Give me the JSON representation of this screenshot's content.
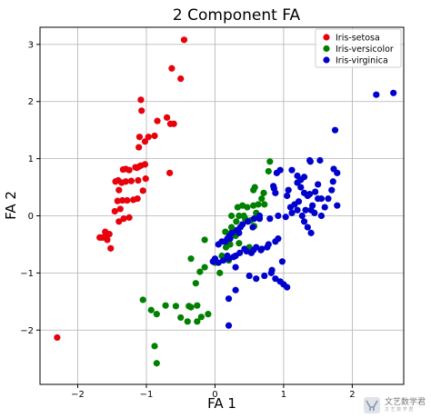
{
  "chart_data": {
    "type": "scatter",
    "title": "2 Component FA",
    "xlabel": "FA 1",
    "ylabel": "FA 2",
    "xlim": [
      -2.55,
      2.75
    ],
    "ylim": [
      -2.95,
      3.3
    ],
    "xticks": [
      -2,
      -1,
      0,
      1,
      2
    ],
    "yticks": [
      -2,
      -1,
      0,
      1,
      2,
      3
    ],
    "xtick_labels": [
      "−2",
      "−1",
      "0",
      "1",
      "2"
    ],
    "ytick_labels": [
      "−2",
      "−1",
      "0",
      "1",
      "2",
      "3"
    ],
    "grid": true,
    "legend_position": "top-right",
    "series": [
      {
        "name": "Iris-setosa",
        "color": "#e8000b",
        "x": [
          -0.45,
          -0.63,
          -0.5,
          -1.08,
          -1.07,
          -0.6,
          -0.65,
          -0.7,
          -0.84,
          -0.88,
          -0.97,
          -1.02,
          -1.1,
          -1.11,
          -0.66,
          -1.02,
          -1.08,
          -1.11,
          -1.14,
          -1.16,
          -1.25,
          -1.3,
          -1.34,
          -1.41,
          -1.45,
          -1.01,
          -1.12,
          -1.22,
          -1.3,
          -1.36,
          -1.4,
          -1.05,
          -1.13,
          -1.19,
          -1.28,
          -1.35,
          -1.42,
          -1.38,
          -1.46,
          -1.25,
          -1.33,
          -1.4,
          -1.54,
          -1.58,
          -1.6,
          -1.64,
          -1.68,
          -1.57,
          -1.52,
          -2.3
        ],
        "y": [
          3.08,
          2.58,
          2.4,
          2.03,
          1.84,
          1.61,
          1.61,
          1.72,
          1.66,
          1.4,
          1.38,
          1.3,
          1.38,
          1.2,
          0.75,
          0.9,
          0.88,
          0.86,
          0.84,
          0.85,
          0.8,
          0.82,
          0.81,
          0.62,
          0.6,
          0.65,
          0.62,
          0.61,
          0.6,
          0.58,
          0.45,
          0.44,
          0.3,
          0.28,
          0.27,
          0.27,
          0.26,
          0.12,
          0.08,
          -0.03,
          -0.05,
          -0.1,
          -0.32,
          -0.35,
          -0.28,
          -0.38,
          -0.38,
          -0.42,
          -0.57,
          -2.13
        ]
      },
      {
        "name": "Iris-versicolor",
        "color": "#008000",
        "x": [
          0.8,
          0.78,
          0.56,
          0.58,
          0.71,
          0.68,
          0.63,
          0.56,
          0.4,
          0.35,
          0.47,
          0.33,
          0.42,
          0.24,
          0.31,
          0.44,
          0.52,
          0.6,
          0.72,
          0.57,
          0.3,
          0.24,
          0.23,
          0.15,
          0.22,
          0.35,
          0.5,
          0.16,
          0.1,
          0.2,
          0.0,
          -0.15,
          -0.35,
          -0.15,
          0.07,
          -0.22,
          -0.28,
          -0.26,
          -0.38,
          -0.57,
          -0.72,
          -0.1,
          -0.2,
          -0.26,
          -0.4,
          -0.5,
          -0.35,
          -1.05,
          -0.85,
          -0.93,
          -0.88,
          -0.85
        ],
        "y": [
          0.95,
          0.78,
          0.45,
          0.5,
          0.4,
          0.3,
          0.2,
          0.18,
          0.18,
          0.0,
          0.15,
          0.15,
          0.0,
          0.0,
          -0.1,
          -0.05,
          -0.08,
          0.05,
          0.2,
          -0.18,
          -0.35,
          -0.2,
          -0.3,
          -0.28,
          -0.5,
          -0.48,
          -0.55,
          -0.55,
          -0.7,
          -0.78,
          -0.82,
          -0.42,
          -0.75,
          -0.9,
          -1.0,
          -0.98,
          -1.18,
          -1.57,
          -1.58,
          -1.58,
          -1.57,
          -1.72,
          -1.77,
          -1.85,
          -1.85,
          -1.78,
          -1.6,
          -1.47,
          -1.72,
          -1.65,
          -2.28,
          -2.58
        ]
      },
      {
        "name": "Iris-virginica",
        "color": "#0000cd",
        "x": [
          2.6,
          2.35,
          1.75,
          1.38,
          1.39,
          1.53,
          1.73,
          1.12,
          0.95,
          0.9,
          0.85,
          1.3,
          1.25,
          1.2,
          1.07,
          1.05,
          1.78,
          1.5,
          1.38,
          1.5,
          1.22,
          1.16,
          0.86,
          0.88,
          1.55,
          1.46,
          1.42,
          1.32,
          1.12,
          1.03,
          0.92,
          0.8,
          0.65,
          0.57,
          0.48,
          0.4,
          0.37,
          0.32,
          0.25,
          0.21,
          0.18,
          0.15,
          0.92,
          0.88,
          0.78,
          0.76,
          0.68,
          0.67,
          0.6,
          0.56,
          0.53,
          0.46,
          0.43,
          0.36,
          0.3,
          0.27,
          0.2,
          0.18,
          0.12,
          0.05,
          0.0,
          -0.03,
          0.3,
          0.5,
          0.6,
          0.72,
          0.82,
          0.83,
          0.88,
          0.95,
          1.0,
          1.05,
          1.2,
          1.25,
          1.3,
          1.35,
          1.4,
          1.45,
          0.65,
          0.55,
          0.35,
          0.22,
          0.1,
          0.05,
          0.3,
          0.2,
          1.1,
          1.2,
          1.27,
          1.3,
          1.35,
          1.4,
          1.55,
          1.6,
          1.65,
          1.7,
          1.72,
          1.78,
          0.98,
          0.2
        ],
        "y": [
          2.15,
          2.12,
          1.5,
          0.97,
          0.95,
          0.97,
          0.82,
          0.8,
          0.8,
          0.75,
          0.52,
          0.68,
          0.63,
          0.58,
          0.45,
          0.35,
          0.18,
          0.55,
          0.38,
          0.3,
          0.25,
          0.2,
          0.48,
          0.4,
          0.3,
          0.42,
          0.18,
          0.1,
          0.05,
          -0.02,
          0.0,
          -0.05,
          0.0,
          -0.05,
          -0.1,
          -0.15,
          -0.2,
          -0.25,
          -0.3,
          -0.35,
          -0.4,
          -0.45,
          -0.4,
          -0.45,
          -0.5,
          -0.55,
          -0.58,
          -0.6,
          -0.55,
          -0.6,
          -0.65,
          -0.62,
          -0.58,
          -0.65,
          -0.7,
          -0.72,
          -0.75,
          -0.7,
          -0.78,
          -0.82,
          -0.75,
          -0.8,
          -0.9,
          -1.05,
          -1.1,
          -1.05,
          -1.0,
          -0.95,
          -1.1,
          -1.15,
          -1.2,
          -1.25,
          0.7,
          0.5,
          0.4,
          0.35,
          0.1,
          0.05,
          -0.05,
          -0.2,
          -0.3,
          -0.4,
          -0.45,
          -0.5,
          -1.3,
          -1.92,
          0.15,
          0.1,
          0.0,
          -0.1,
          -0.2,
          -0.3,
          0.0,
          0.15,
          0.3,
          0.45,
          0.6,
          0.75,
          -0.8,
          -1.45
        ]
      }
    ]
  },
  "watermark": {
    "text": "文艺数学君",
    "subtext": "文 艺 数 学 君"
  }
}
